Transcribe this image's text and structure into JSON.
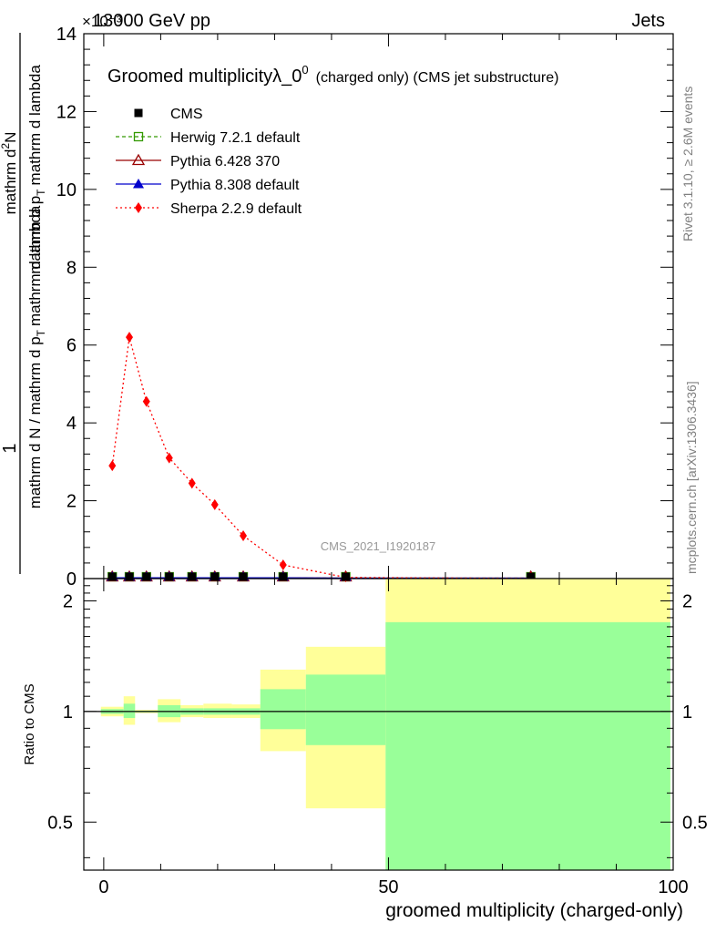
{
  "header": {
    "left": "13000 GeV pp",
    "right": "Jets",
    "exponent_label": "×10⁻³"
  },
  "side_labels": {
    "rivet": "Rivet 3.1.10, ≥ 2.6M events",
    "mcplots": "mcplots.cern.ch [arXiv:1306.3436]"
  },
  "chart_data": [
    {
      "type": "line",
      "title": "Groomed multiplicityλ_0",
      "title_sup": "0",
      "title_suffix": "(charged only) (CMS jet substructure)",
      "watermark": "CMS_2021_I1920187",
      "ylabel_parts": {
        "num_one": "1",
        "den_one": "mathrm d N / mathrm d p",
        "den_one_sub": "T",
        "den_one_tail": "mathrm d lambda",
        "num_two": "mathrm d",
        "num_two_sup": "2",
        "num_two_tail": "N",
        "den_two": "mathrm d p",
        "den_two_sub": "T",
        "den_two_tail": "mathrm d lambda"
      },
      "xlim": [
        -3.5,
        100
      ],
      "ylim": [
        0,
        14
      ],
      "y_scale_factor": 0.001,
      "y_ticks": [
        0,
        2,
        4,
        6,
        8,
        10,
        12,
        14
      ],
      "y_tick_labels": [
        "0",
        "2",
        "4",
        "6",
        "8",
        "10",
        "12",
        "14"
      ],
      "legend_position": "top-left",
      "legend": [
        {
          "name": "CMS",
          "style": "data"
        },
        {
          "name": "Herwig 7.2.1 default",
          "style": "herwig"
        },
        {
          "name": "Pythia 6.428 370",
          "style": "pythia6"
        },
        {
          "name": "Pythia 8.308 default",
          "style": "pythia8"
        },
        {
          "name": "Sherpa 2.2.9 default",
          "style": "sherpa"
        }
      ],
      "x_points": [
        1.5,
        4.5,
        7.5,
        11.5,
        15.5,
        19.5,
        24.5,
        31.5,
        42.5,
        75
      ],
      "series": [
        {
          "name": "CMS",
          "style": "data",
          "color": "#000000",
          "values": [
            0.02,
            0.02,
            0.02,
            0.02,
            0.02,
            0.02,
            0.02,
            0.02,
            0.01,
            0.01
          ]
        },
        {
          "name": "Herwig 7.2.1 default",
          "style": "herwig",
          "color": "#339900",
          "values": [
            0.02,
            0.02,
            0.02,
            0.02,
            0.02,
            0.02,
            0.02,
            0.02,
            0.01,
            0.01
          ]
        },
        {
          "name": "Pythia 6.428 370",
          "style": "pythia6",
          "color": "#990000",
          "values": [
            0.02,
            0.02,
            0.02,
            0.02,
            0.02,
            0.02,
            0.02,
            0.02,
            0.01,
            0.01
          ]
        },
        {
          "name": "Pythia 8.308 default",
          "style": "pythia8",
          "color": "#0000cc",
          "values": [
            0.02,
            0.02,
            0.02,
            0.02,
            0.02,
            0.02,
            0.02,
            0.02,
            0.01,
            0.01
          ]
        },
        {
          "name": "Sherpa 2.2.9 default",
          "style": "sherpa",
          "color": "#ff0000",
          "values": [
            2.9,
            6.2,
            4.55,
            3.1,
            2.45,
            1.9,
            1.1,
            0.35,
            0.03,
            0.0
          ]
        }
      ]
    },
    {
      "type": "area",
      "ylabel": "Ratio to CMS",
      "xlabel": "groomed multiplicity (charged-only)",
      "xlim": [
        -3.5,
        100
      ],
      "ylim": [
        0.37,
        2.3
      ],
      "y_scale": "log",
      "y_ticks": [
        0.5,
        1,
        2
      ],
      "y_tick_labels": [
        "0.5",
        "1",
        "2"
      ],
      "x_ticks": [
        0,
        50,
        100
      ],
      "x_tick_labels": [
        "0",
        "50",
        "100"
      ],
      "reference": 1,
      "bins": [
        {
          "x0": -0.5,
          "x1": 3.5,
          "y_lo": 0.97,
          "y_hi": 1.03,
          "g_lo": 0.985,
          "g_hi": 1.015
        },
        {
          "x0": 3.5,
          "x1": 5.5,
          "y_lo": 0.92,
          "y_hi": 1.1,
          "g_lo": 0.96,
          "g_hi": 1.05
        },
        {
          "x0": 5.5,
          "x1": 9.5,
          "y_lo": 0.99,
          "y_hi": 1.01,
          "g_lo": 0.995,
          "g_hi": 1.005
        },
        {
          "x0": 9.5,
          "x1": 13.5,
          "y_lo": 0.935,
          "y_hi": 1.08,
          "g_lo": 0.965,
          "g_hi": 1.04
        },
        {
          "x0": 13.5,
          "x1": 17.5,
          "y_lo": 0.965,
          "y_hi": 1.04,
          "g_lo": 0.98,
          "g_hi": 1.02
        },
        {
          "x0": 17.5,
          "x1": 22.5,
          "y_lo": 0.96,
          "y_hi": 1.05,
          "g_lo": 0.98,
          "g_hi": 1.02
        },
        {
          "x0": 22.5,
          "x1": 27.5,
          "y_lo": 0.96,
          "y_hi": 1.045,
          "g_lo": 0.98,
          "g_hi": 1.02
        },
        {
          "x0": 27.5,
          "x1": 35.5,
          "y_lo": 0.78,
          "y_hi": 1.3,
          "g_lo": 0.895,
          "g_hi": 1.15
        },
        {
          "x0": 35.5,
          "x1": 49.5,
          "y_lo": 0.545,
          "y_hi": 1.5,
          "g_lo": 0.81,
          "g_hi": 1.26
        },
        {
          "x0": 49.5,
          "x1": 99.5,
          "y_lo": 0.37,
          "y_hi": 2.3,
          "g_lo": 0.37,
          "g_hi": 1.75
        }
      ],
      "band_colors": {
        "outer": "#ffff99",
        "inner": "#99ff99"
      }
    }
  ]
}
